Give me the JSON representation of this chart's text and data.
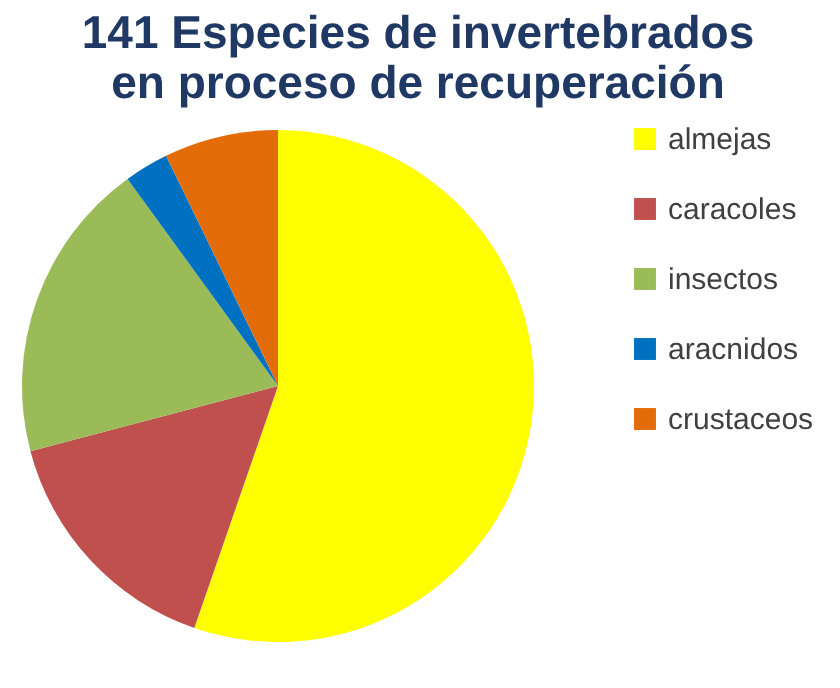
{
  "chart_data": {
    "type": "pie",
    "title": [
      "141 Especies de invertebrados",
      "en proceso de recuperación"
    ],
    "categories": [
      "almejas",
      "caracoles",
      "insectos",
      "aracnidos",
      "crustaceos"
    ],
    "values": [
      55.3,
      15.6,
      19.1,
      2.8,
      7.2
    ],
    "colors": [
      "#ffff00",
      "#c0504d",
      "#9bbb59",
      "#0070c0",
      "#e36c09"
    ],
    "legend": "right"
  }
}
